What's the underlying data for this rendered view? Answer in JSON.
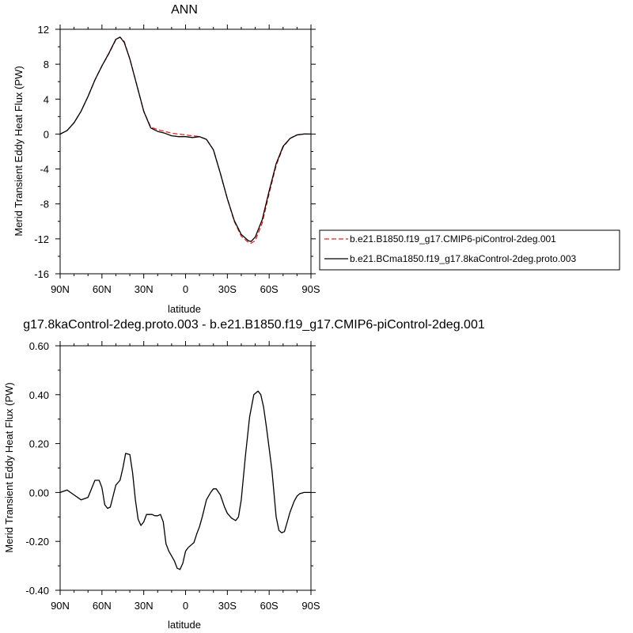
{
  "chart_data": [
    {
      "type": "line",
      "title": "ANN",
      "xlabel": "latitude",
      "ylabel": "Merid Transient Eddy Heat Flux (PW)",
      "xlim": [
        90,
        -90
      ],
      "ylim": [
        -16,
        12
      ],
      "x_ticks": [
        90,
        60,
        30,
        0,
        -30,
        -60,
        -90
      ],
      "x_tick_labels": [
        "90N",
        "60N",
        "30N",
        "0",
        "30S",
        "60S",
        "90S"
      ],
      "y_ticks": [
        12,
        8,
        4,
        0,
        -4,
        -8,
        -12,
        -16
      ],
      "y_tick_labels": [
        "12",
        "8",
        "4",
        "0",
        "-4",
        "-8",
        "-12",
        "-16"
      ],
      "legend_position": "right",
      "series": [
        {
          "name": "b.e21.B1850.f19_g17.CMIP6-piControl-2deg.001",
          "color": "#e8231f",
          "dash": "dashed",
          "x": [
            90,
            85,
            80,
            75,
            70,
            65,
            60,
            55,
            50,
            47,
            44,
            40,
            35,
            30,
            25,
            20,
            15,
            10,
            5,
            0,
            -5,
            -10,
            -15,
            -20,
            -25,
            -30,
            -35,
            -40,
            -45,
            -47,
            -50,
            -55,
            -60,
            -65,
            -70,
            -75,
            -80,
            -85,
            -90
          ],
          "y": [
            0,
            0.4,
            1.3,
            2.6,
            4.3,
            6.2,
            7.8,
            9.2,
            10.8,
            11.1,
            10.6,
            8.6,
            5.6,
            2.6,
            0.8,
            0.5,
            0.3,
            0.1,
            0,
            -0.1,
            -0.2,
            -0.3,
            -0.6,
            -1.8,
            -4.5,
            -7.4,
            -10.0,
            -11.7,
            -12.4,
            -12.5,
            -12.2,
            -10.2,
            -6.8,
            -3.6,
            -1.5,
            -0.5,
            -0.1,
            0,
            0
          ]
        },
        {
          "name": "b.e21.BCma1850.f19_g17.8kaControl-2deg.proto.003",
          "color": "#000000",
          "dash": "solid",
          "x": [
            90,
            85,
            80,
            75,
            70,
            65,
            60,
            55,
            50,
            47,
            44,
            40,
            35,
            30,
            25,
            20,
            15,
            10,
            5,
            0,
            -5,
            -10,
            -15,
            -20,
            -25,
            -30,
            -35,
            -40,
            -45,
            -47,
            -50,
            -55,
            -60,
            -65,
            -70,
            -75,
            -80,
            -85,
            -90
          ],
          "y": [
            0,
            0.4,
            1.3,
            2.6,
            4.3,
            6.2,
            7.8,
            9.25,
            10.85,
            11.1,
            10.5,
            8.6,
            5.6,
            2.6,
            0.7,
            0.3,
            0.1,
            -0.2,
            -0.3,
            -0.3,
            -0.4,
            -0.3,
            -0.6,
            -1.8,
            -4.5,
            -7.4,
            -9.9,
            -11.5,
            -12.2,
            -12.3,
            -11.8,
            -9.8,
            -6.5,
            -3.4,
            -1.4,
            -0.5,
            -0.1,
            0,
            0
          ]
        }
      ]
    },
    {
      "type": "line",
      "title": "g17.8kaControl-2deg.proto.003 - b.e21.B1850.f19_g17.CMIP6-piControl-2deg.001",
      "xlabel": "latitude",
      "ylabel": "Merid Transient Eddy Heat Flux (PW)",
      "xlim": [
        90,
        -90
      ],
      "ylim": [
        -0.4,
        0.6
      ],
      "x_ticks": [
        90,
        60,
        30,
        0,
        -30,
        -60,
        -90
      ],
      "x_tick_labels": [
        "90N",
        "60N",
        "30N",
        "0",
        "30S",
        "60S",
        "90S"
      ],
      "y_ticks": [
        0.6,
        0.4,
        0.2,
        0,
        -0.2,
        -0.4
      ],
      "y_tick_labels": [
        "0.60",
        "0.40",
        "0.20",
        "0.00",
        "-0.20",
        "-0.40"
      ],
      "series": [
        {
          "color": "#000000",
          "x": [
            90,
            85,
            80,
            75,
            70,
            65,
            62,
            60,
            58,
            56,
            54,
            50,
            47,
            45,
            43,
            40,
            38,
            36,
            34,
            32,
            30,
            28,
            26,
            24,
            22,
            20,
            18,
            16,
            14,
            12,
            10,
            8,
            6,
            4,
            2,
            0,
            -2,
            -4,
            -6,
            -8,
            -10,
            -12,
            -15,
            -18,
            -20,
            -22,
            -25,
            -28,
            -30,
            -33,
            -36,
            -38,
            -40,
            -43,
            -46,
            -49,
            -52,
            -54,
            -56,
            -58,
            -60,
            -62,
            -65,
            -67,
            -69,
            -71,
            -73,
            -75,
            -78,
            -80,
            -82,
            -85,
            -88,
            -90
          ],
          "y": [
            0,
            0.01,
            -0.01,
            -0.03,
            -0.02,
            0.05,
            0.05,
            0.02,
            -0.05,
            -0.065,
            -0.06,
            0.03,
            0.05,
            0.1,
            0.16,
            0.155,
            0.08,
            -0.03,
            -0.11,
            -0.135,
            -0.12,
            -0.09,
            -0.09,
            -0.09,
            -0.095,
            -0.095,
            -0.09,
            -0.12,
            -0.21,
            -0.24,
            -0.26,
            -0.28,
            -0.31,
            -0.315,
            -0.29,
            -0.24,
            -0.225,
            -0.215,
            -0.205,
            -0.17,
            -0.14,
            -0.1,
            -0.03,
            0.0,
            0.015,
            0.015,
            -0.01,
            -0.06,
            -0.085,
            -0.105,
            -0.115,
            -0.1,
            -0.03,
            0.15,
            0.31,
            0.4,
            0.415,
            0.4,
            0.35,
            0.27,
            0.18,
            0.09,
            -0.1,
            -0.155,
            -0.165,
            -0.16,
            -0.12,
            -0.08,
            -0.035,
            -0.015,
            -0.005,
            0,
            0,
            0
          ]
        }
      ]
    }
  ]
}
